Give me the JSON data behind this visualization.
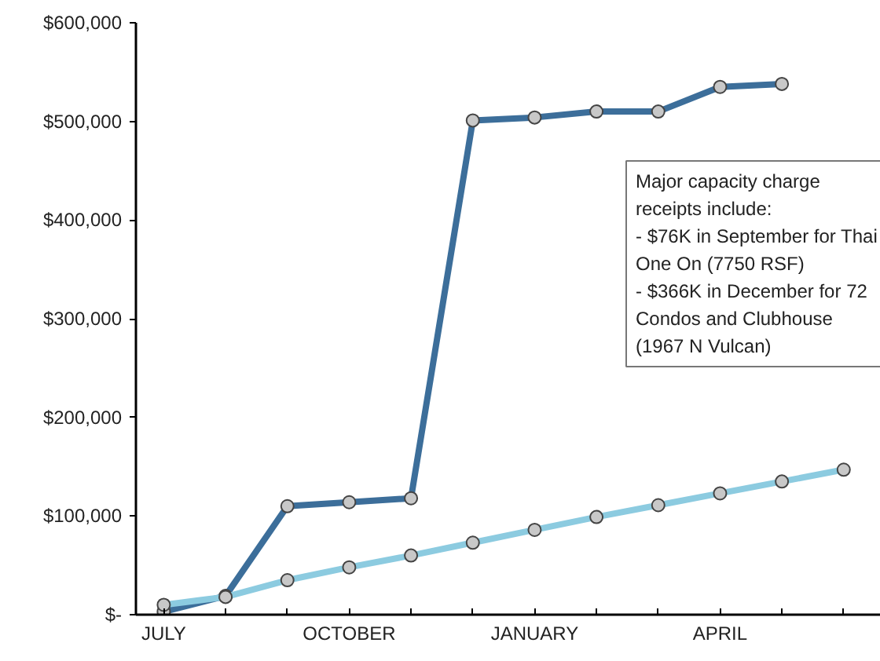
{
  "chart_data": {
    "type": "line",
    "categories": [
      "JULY",
      null,
      null,
      "OCTOBER",
      null,
      null,
      "JANUARY",
      null,
      null,
      "APRIL",
      null,
      null
    ],
    "series": [
      {
        "color": "#3c6e9a",
        "values": [
          3000,
          19000,
          110000,
          114000,
          118000,
          501000,
          504000,
          510000,
          510000,
          535000,
          538000,
          null
        ]
      },
      {
        "color": "#8ccbe0",
        "values": [
          10000,
          18000,
          35000,
          48000,
          60000,
          73000,
          86000,
          99000,
          111000,
          123000,
          135000,
          147000
        ]
      }
    ],
    "ylim": [
      0,
      600000
    ],
    "yticks": [
      {
        "value": 0,
        "label": "$-"
      },
      {
        "value": 100000,
        "label": "$100,000"
      },
      {
        "value": 200000,
        "label": "$200,000"
      },
      {
        "value": 300000,
        "label": "$300,000"
      },
      {
        "value": 400000,
        "label": "$400,000"
      },
      {
        "value": 500000,
        "label": "$500,000"
      },
      {
        "value": 600000,
        "label": "$600,000"
      }
    ],
    "annotations": [
      "Major capacity charge\nreceipts include:\n- $76K in September for Thai\nOne On (7750 RSF)\n- $366K in December for 72\nCondos and Clubhouse\n(1967 N Vulcan)"
    ],
    "grid": false,
    "marker": "circle",
    "line_style": "solid"
  }
}
